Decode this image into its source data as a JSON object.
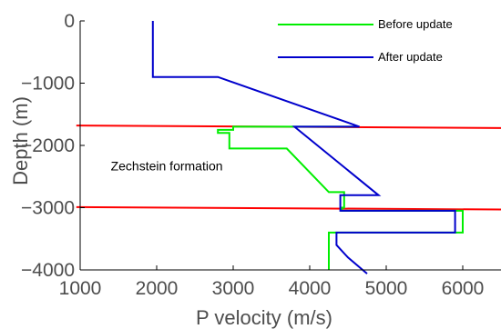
{
  "chart_data": {
    "type": "line",
    "xlabel": "P velocity (m/s)",
    "ylabel": "Depth (m)",
    "xlim": [
      1000,
      6500
    ],
    "ylim": [
      -4000,
      0
    ],
    "x_ticks": [
      "1000",
      "2000",
      "3000",
      "4000",
      "5000",
      "6000"
    ],
    "y_ticks": [
      "0",
      "−1000",
      "−2000",
      "−3000",
      "−4000"
    ],
    "grid": false,
    "legend_placement": "top-right",
    "series": [
      {
        "name": "Before update",
        "color": "#00ee00",
        "points": [
          [
            4620,
            -1700
          ],
          [
            3000,
            -1700
          ],
          [
            3000,
            -1750
          ],
          [
            2800,
            -1750
          ],
          [
            2800,
            -1800
          ],
          [
            2950,
            -1800
          ],
          [
            2950,
            -2050
          ],
          [
            3700,
            -2050
          ],
          [
            4250,
            -2750
          ],
          [
            4450,
            -2750
          ],
          [
            4450,
            -2950
          ],
          [
            4450,
            -3000
          ],
          [
            4420,
            -3000
          ],
          [
            4420,
            -3050
          ],
          [
            5900,
            -3050
          ],
          [
            6000,
            -3050
          ],
          [
            6000,
            -3400
          ],
          [
            4250,
            -3400
          ],
          [
            4250,
            -4000
          ]
        ]
      },
      {
        "name": "After update",
        "color": "#0000cc",
        "points": [
          [
            1950,
            0
          ],
          [
            1950,
            -900
          ],
          [
            2800,
            -900
          ],
          [
            4650,
            -1700
          ],
          [
            3800,
            -1700
          ],
          [
            4900,
            -2800
          ],
          [
            4400,
            -2800
          ],
          [
            4400,
            -3050
          ],
          [
            5900,
            -3050
          ],
          [
            5900,
            -3400
          ],
          [
            4350,
            -3400
          ],
          [
            4350,
            -3600
          ],
          [
            4500,
            -3800
          ],
          [
            4750,
            -4060
          ]
        ]
      }
    ],
    "reference_lines": [
      {
        "color": "#ff0000",
        "x": [
          950,
          6500
        ],
        "y": [
          -1680,
          -1720
        ]
      },
      {
        "color": "#ff0000",
        "x": [
          950,
          6500
        ],
        "y": [
          -2990,
          -3030
        ]
      }
    ],
    "annotations": [
      {
        "text": "Zechstein formation",
        "x": 1400,
        "y": -2400
      }
    ]
  }
}
